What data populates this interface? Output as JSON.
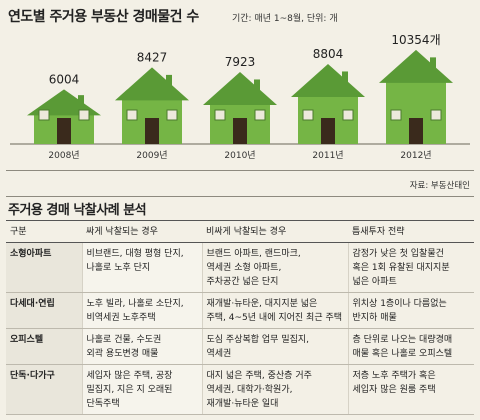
{
  "title": "연도별 주거용 부동산 경매물건 수",
  "subtitle": "기간: 매년 1~8월, 단위: 개",
  "source": "자료: 부동산태인",
  "chart_data": {
    "type": "bar",
    "title": "연도별 주거용 부동산 경매물건 수",
    "subtitle": "기간: 매년 1~8월, 단위: 개",
    "categories": [
      "2008년",
      "2009년",
      "2010년",
      "2011년",
      "2012년"
    ],
    "values": [
      6004,
      8427,
      7923,
      8804,
      10354
    ],
    "value_labels": [
      "6004",
      "8427",
      "7923",
      "8804",
      "10354개"
    ],
    "ylim": [
      0,
      11000
    ],
    "grid": false,
    "mark_style": "house",
    "colors": {
      "house_green": "#75b545",
      "roof_green": "#5a9a36",
      "door": "#3a2a1c",
      "window": "#ede9dc"
    }
  },
  "table": {
    "title": "주거용 경매 낙찰사례 분석",
    "headers": [
      "구분",
      "싸게 낙찰되는 경우",
      "비싸게 낙찰되는 경우",
      "틈새투자 전략"
    ],
    "rows": [
      {
        "type": "소형아파트",
        "cheap": "비브랜드, 대형 평형 단지,\n나홀로 노후 단지",
        "expensive": "브랜드 아파트, 랜드마크,\n역세권 소형 아파트,\n주차공간 넓은 단지",
        "strategy": "감정가 낮은 첫 입찰물건\n혹은 1회 유찰된 대지지분\n넓은 아파트"
      },
      {
        "type": "다세대·연립",
        "cheap": "노후 빌라, 나홀로 소단지,\n비역세권 노후주택",
        "expensive": "재개발·뉴타운, 대지지분 넓은\n주택, 4~5년 내에 지어진 최근 주택",
        "strategy": "위치상 1층이나 다름없는\n반지하 매물"
      },
      {
        "type": "오피스텔",
        "cheap": "나홀로 건물, 수도권\n외곽 용도변경 매물",
        "expensive": "도심 주상복합 업무 밀집지,\n역세권",
        "strategy": "층 단위로 나오는 대량경매\n매물 혹은 나홀로 오피스텔"
      },
      {
        "type": "단독·다가구",
        "cheap": "세입자 많은 주택, 공장\n밀집지, 지은 지 오래된\n단독주택",
        "expensive": "대지 넓은 주택, 중산층 거주\n역세권, 대학가·학원가,\n재개발·뉴타운 일대",
        "strategy": "저층 노후 주택가 혹은\n세입자 많은 원룸 주택"
      }
    ]
  }
}
